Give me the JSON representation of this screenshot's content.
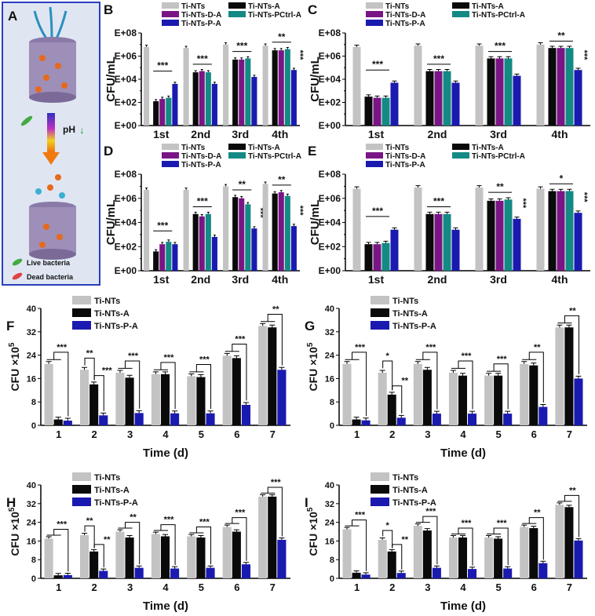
{
  "colors": {
    "Ti-NTs": "#c3c3c3",
    "Ti-NTs-A": "#0a0a0a",
    "Ti-NTs-D-A": "#7a1585",
    "Ti-NTs-PCtrl-A": "#138a83",
    "Ti-NTs-P-A": "#1a1ab0",
    "linA": "#7a1585",
    "linPA": "#178f87"
  },
  "schematic": {
    "letter": "A",
    "ph_label": "pH",
    "live_label": "Live bacteria",
    "dead_label": "Dead bacteria"
  },
  "chart_data": [
    {
      "id": "B",
      "letter": "B",
      "type": "bar",
      "scale": "log",
      "ylabel": "CFU/mL",
      "yticks": [
        "E+00",
        "E+02",
        "E+04",
        "E+06",
        "E+08"
      ],
      "ylim": [
        0,
        8
      ],
      "categories": [
        "1st",
        "2nd",
        "3rd",
        "4th"
      ],
      "series": [
        {
          "name": "Ti-NTs",
          "values": [
            6.8,
            6.7,
            7.0,
            6.9
          ]
        },
        {
          "name": "Ti-NTs-A",
          "values": [
            2.1,
            4.6,
            5.7,
            6.5
          ]
        },
        {
          "name": "Ti-NTs-D-A",
          "values": [
            2.3,
            4.7,
            5.7,
            6.5
          ]
        },
        {
          "name": "Ti-NTs-PCtrl-A",
          "values": [
            2.4,
            4.6,
            5.8,
            6.6
          ]
        },
        {
          "name": "Ti-NTs-P-A",
          "values": [
            3.6,
            3.6,
            4.2,
            4.8
          ]
        }
      ],
      "group_sig": [
        "***",
        "***",
        "***",
        "**"
      ],
      "vertical_sig": [
        null,
        null,
        null,
        "***"
      ]
    },
    {
      "id": "C",
      "letter": "C",
      "type": "bar",
      "scale": "log",
      "ylabel": "CFU/mL",
      "yticks": [
        "E+00",
        "E+02",
        "E+04",
        "E+06",
        "E+08"
      ],
      "ylim": [
        0,
        8
      ],
      "categories": [
        "1st",
        "2nd",
        "3rd",
        "4th"
      ],
      "series": [
        {
          "name": "Ti-NTs",
          "values": [
            6.8,
            6.9,
            6.9,
            7.0
          ]
        },
        {
          "name": "Ti-NTs-A",
          "values": [
            2.5,
            4.7,
            5.8,
            6.7
          ]
        },
        {
          "name": "Ti-NTs-D-A",
          "values": [
            2.4,
            4.7,
            5.8,
            6.7
          ]
        },
        {
          "name": "Ti-NTs-PCtrl-A",
          "values": [
            2.4,
            4.7,
            5.8,
            6.7
          ]
        },
        {
          "name": "Ti-NTs-P-A",
          "values": [
            3.7,
            3.7,
            4.3,
            4.8
          ]
        }
      ],
      "group_sig": [
        "***",
        "***",
        "***",
        "**"
      ],
      "vertical_sig": [
        null,
        null,
        null,
        "***"
      ]
    },
    {
      "id": "D",
      "letter": "D",
      "type": "bar",
      "scale": "log",
      "ylabel": "CFU/mL",
      "yticks": [
        "E+00",
        "E+02",
        "E+04",
        "E+06",
        "E+08"
      ],
      "ylim": [
        0,
        8
      ],
      "categories": [
        "1st",
        "2nd",
        "3rd",
        "4th"
      ],
      "series": [
        {
          "name": "Ti-NTs",
          "values": [
            6.7,
            6.7,
            7.0,
            7.2
          ]
        },
        {
          "name": "Ti-NTs-A",
          "values": [
            1.6,
            4.7,
            6.1,
            6.4
          ]
        },
        {
          "name": "Ti-NTs-D-A",
          "values": [
            2.2,
            4.5,
            6.0,
            6.5
          ]
        },
        {
          "name": "Ti-NTs-PCtrl-A",
          "values": [
            2.4,
            4.7,
            5.5,
            6.2
          ]
        },
        {
          "name": "Ti-NTs-P-A",
          "values": [
            2.2,
            2.8,
            3.5,
            3.7
          ]
        }
      ],
      "group_sig": [
        "***",
        "***",
        "**",
        "**"
      ],
      "vertical_sig": [
        null,
        null,
        "***",
        "***"
      ]
    },
    {
      "id": "E",
      "letter": "E",
      "type": "bar",
      "scale": "log",
      "ylabel": "CFU/mL",
      "yticks": [
        "E+00",
        "E+02",
        "E+04",
        "E+06",
        "E+08"
      ],
      "ylim": [
        0,
        8
      ],
      "categories": [
        "1st",
        "2nd",
        "3rd",
        "4th"
      ],
      "series": [
        {
          "name": "Ti-NTs",
          "values": [
            6.8,
            6.9,
            6.9,
            6.8
          ]
        },
        {
          "name": "Ti-NTs-A",
          "values": [
            2.2,
            4.7,
            5.8,
            6.6
          ]
        },
        {
          "name": "Ti-NTs-D-A",
          "values": [
            2.2,
            4.7,
            5.8,
            6.6
          ]
        },
        {
          "name": "Ti-NTs-PCtrl-A",
          "values": [
            2.3,
            4.7,
            5.9,
            6.6
          ]
        },
        {
          "name": "Ti-NTs-P-A",
          "values": [
            3.4,
            3.4,
            4.3,
            4.8
          ]
        }
      ],
      "group_sig": [
        "***",
        "***",
        "**",
        "*"
      ],
      "vertical_sig": [
        null,
        null,
        "***",
        "***"
      ]
    },
    {
      "id": "F",
      "letter": "F",
      "type": "bar",
      "scale": "linear",
      "ylabel": "CFU ×10",
      "ylabel_sup": "5",
      "xlabel": "Time (d)",
      "yticks": [
        "0",
        "8",
        "16",
        "24",
        "32",
        "40"
      ],
      "ylim": [
        0,
        40
      ],
      "categories": [
        "1",
        "2",
        "3",
        "4",
        "5",
        "6",
        "7"
      ],
      "series": [
        {
          "name": "Ti-NTs",
          "values": [
            21,
            19,
            18,
            17.5,
            16.8,
            23.8,
            34
          ]
        },
        {
          "name": "Ti-NTs-A",
          "values": [
            2,
            14,
            16.3,
            17.5,
            16.5,
            23,
            33.5
          ]
        },
        {
          "name": "Ti-NTs-P-A",
          "values": [
            1.6,
            3.4,
            4.2,
            4.1,
            4.1,
            7,
            19
          ]
        }
      ],
      "sig_main": [
        "***",
        "**",
        "***",
        "***",
        "***",
        "***",
        "**"
      ],
      "sig_second": [
        null,
        "***",
        null,
        null,
        null,
        null,
        null
      ]
    },
    {
      "id": "G",
      "letter": "G",
      "type": "bar",
      "scale": "linear",
      "ylabel": "CFU ×10",
      "ylabel_sup": "5",
      "xlabel": "Time (d)",
      "yticks": [
        "0",
        "8",
        "16",
        "24",
        "32",
        "40"
      ],
      "ylim": [
        0,
        40
      ],
      "categories": [
        "1",
        "2",
        "3",
        "4",
        "5",
        "6",
        "7"
      ],
      "series": [
        {
          "name": "Ti-NTs",
          "values": [
            21,
            18,
            21,
            18,
            17,
            21,
            33.5
          ]
        },
        {
          "name": "Ti-NTs-A",
          "values": [
            2,
            10.5,
            19,
            17,
            17,
            20.5,
            33.5
          ]
        },
        {
          "name": "Ti-NTs-P-A",
          "values": [
            1.7,
            2.6,
            4,
            4,
            4,
            6.3,
            16
          ]
        }
      ],
      "sig_main": [
        "***",
        "*",
        "***",
        "***",
        "***",
        "**",
        "**"
      ],
      "sig_second": [
        null,
        "**",
        null,
        null,
        null,
        null,
        null
      ]
    },
    {
      "id": "H",
      "letter": "H",
      "type": "bar",
      "scale": "linear",
      "ylabel": "CFU ×10",
      "ylabel_sup": "5",
      "xlabel": "Time (d)",
      "yticks": [
        "0",
        "8",
        "16",
        "24",
        "32",
        "40"
      ],
      "ylim": [
        0,
        40
      ],
      "categories": [
        "1",
        "2",
        "3",
        "4",
        "5",
        "6",
        "7"
      ],
      "series": [
        {
          "name": "Ti-NTs",
          "values": [
            17,
            18.5,
            20,
            19,
            18,
            22,
            35
          ]
        },
        {
          "name": "Ti-NTs-A",
          "values": [
            1.3,
            11.5,
            17.5,
            18,
            17.5,
            20,
            35
          ]
        },
        {
          "name": "Ti-NTs-P-A",
          "values": [
            1.4,
            3.2,
            4.5,
            4.2,
            4.5,
            6,
            16.5
          ]
        }
      ],
      "sig_main": [
        "***",
        "**",
        "**",
        "***",
        "***",
        "***",
        "***"
      ],
      "sig_second": [
        null,
        "**",
        null,
        null,
        null,
        null,
        null
      ]
    },
    {
      "id": "I",
      "letter": "I",
      "type": "bar",
      "scale": "linear",
      "ylabel": "CFU ×10",
      "ylabel_sup": "5",
      "xlabel": "Time (d)",
      "yticks": [
        "0",
        "8",
        "16",
        "24",
        "32",
        "40"
      ],
      "ylim": [
        0,
        40
      ],
      "categories": [
        "1",
        "2",
        "3",
        "4",
        "5",
        "6",
        "7"
      ],
      "series": [
        {
          "name": "Ti-NTs",
          "values": [
            21,
            16.5,
            22.5,
            17.5,
            17.5,
            22,
            31.5
          ]
        },
        {
          "name": "Ti-NTs-A",
          "values": [
            2.4,
            11.5,
            20.5,
            17.5,
            17,
            21.5,
            30.5
          ]
        },
        {
          "name": "Ti-NTs-P-A",
          "values": [
            1.6,
            2.3,
            4.5,
            4,
            4.2,
            6.5,
            16.2
          ]
        }
      ],
      "sig_main": [
        "***",
        "*",
        "***",
        "***",
        "***",
        "**",
        "**"
      ],
      "sig_second": [
        null,
        "**",
        null,
        null,
        null,
        null,
        null
      ]
    }
  ]
}
